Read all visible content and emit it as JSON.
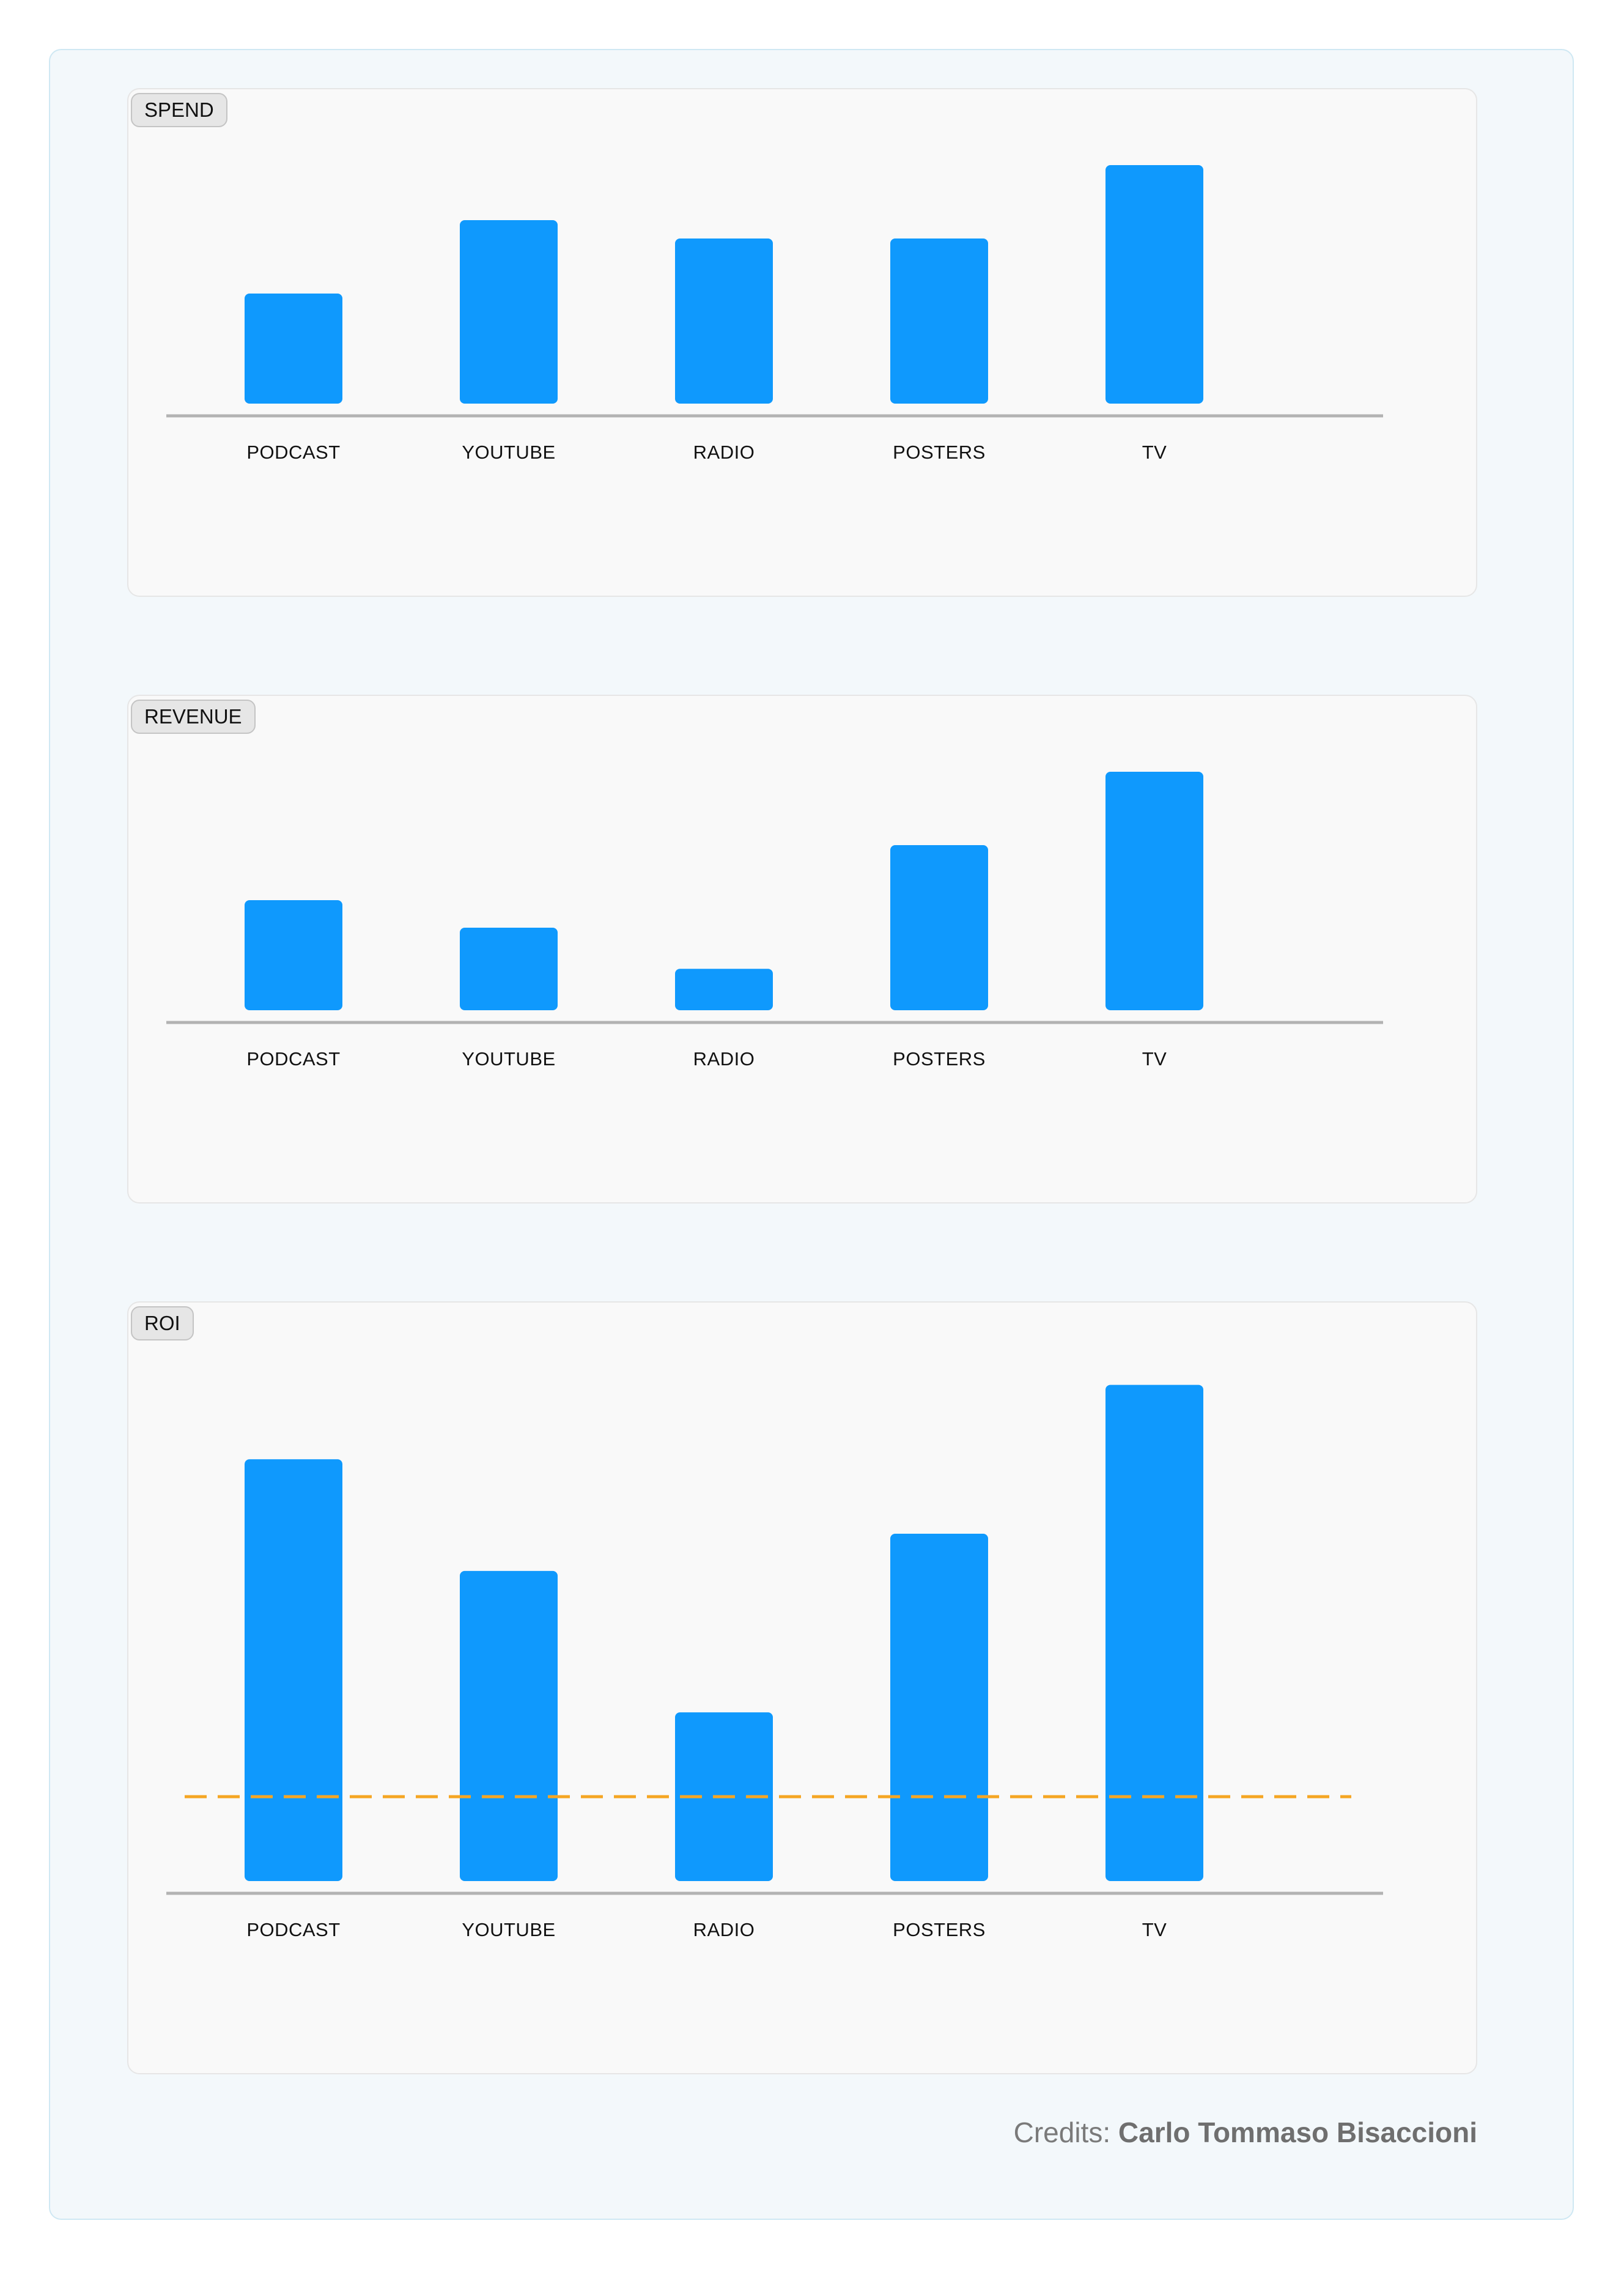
{
  "credits": {
    "prefix": "Credits:",
    "author": "Carlo Tommaso Bisaccioni"
  },
  "colors": {
    "bar": "#0f99fd",
    "axis": "#b3b3b3",
    "reference_line": "#f5a623"
  },
  "chart_data": [
    {
      "type": "bar",
      "title": "SPEND",
      "categories": [
        "PODCAST",
        "YOUTUBE",
        "RADIO",
        "POSTERS",
        "TV"
      ],
      "values": [
        30,
        50,
        45,
        45,
        65
      ],
      "ylim": [
        0,
        70
      ],
      "xlabel": "",
      "ylabel": "",
      "grid": false
    },
    {
      "type": "bar",
      "title": "REVENUE",
      "categories": [
        "PODCAST",
        "YOUTUBE",
        "RADIO",
        "POSTERS",
        "TV"
      ],
      "values": [
        30,
        22.5,
        11.3,
        45,
        65
      ],
      "ylim": [
        0,
        70
      ],
      "xlabel": "",
      "ylabel": "",
      "grid": false
    },
    {
      "type": "bar",
      "title": "ROI",
      "categories": [
        "PODCAST",
        "YOUTUBE",
        "RADIO",
        "POSTERS",
        "TV"
      ],
      "values": [
        1.7,
        1.25,
        0.68,
        1.4,
        2.0
      ],
      "ylim": [
        0,
        2.1
      ],
      "reference_line": 0.34,
      "xlabel": "",
      "ylabel": "",
      "grid": false
    }
  ]
}
